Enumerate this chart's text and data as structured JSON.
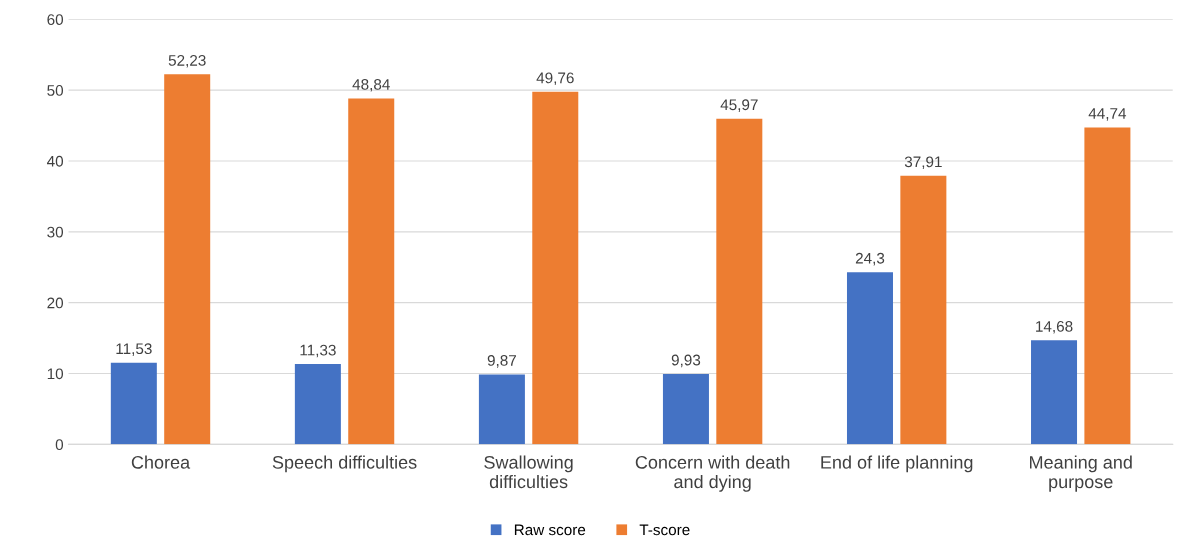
{
  "chart_data": {
    "type": "bar",
    "categories": [
      "Chorea",
      "Speech difficulties",
      "Swallowing\ndifficulties",
      "Concern with death\nand dying",
      "End of life planning",
      "Meaning and\npurpose"
    ],
    "series": [
      {
        "name": "Raw score",
        "color": "#4472c4",
        "values": [
          11.53,
          11.33,
          9.87,
          9.93,
          24.3,
          14.68
        ],
        "value_labels": [
          "11,53",
          "11,33",
          "9,87",
          "9,93",
          "24,3",
          "14,68"
        ]
      },
      {
        "name": "T-score",
        "color": "#ed7d31",
        "values": [
          52.23,
          48.84,
          49.76,
          45.97,
          37.91,
          44.74
        ],
        "value_labels": [
          "52,23",
          "48,84",
          "49,76",
          "45,97",
          "37,91",
          "44,74"
        ]
      }
    ],
    "ylim": [
      0,
      60
    ],
    "yticks": [
      0,
      10,
      20,
      30,
      40,
      50,
      60
    ],
    "grid": "y",
    "legend": "bottom"
  }
}
